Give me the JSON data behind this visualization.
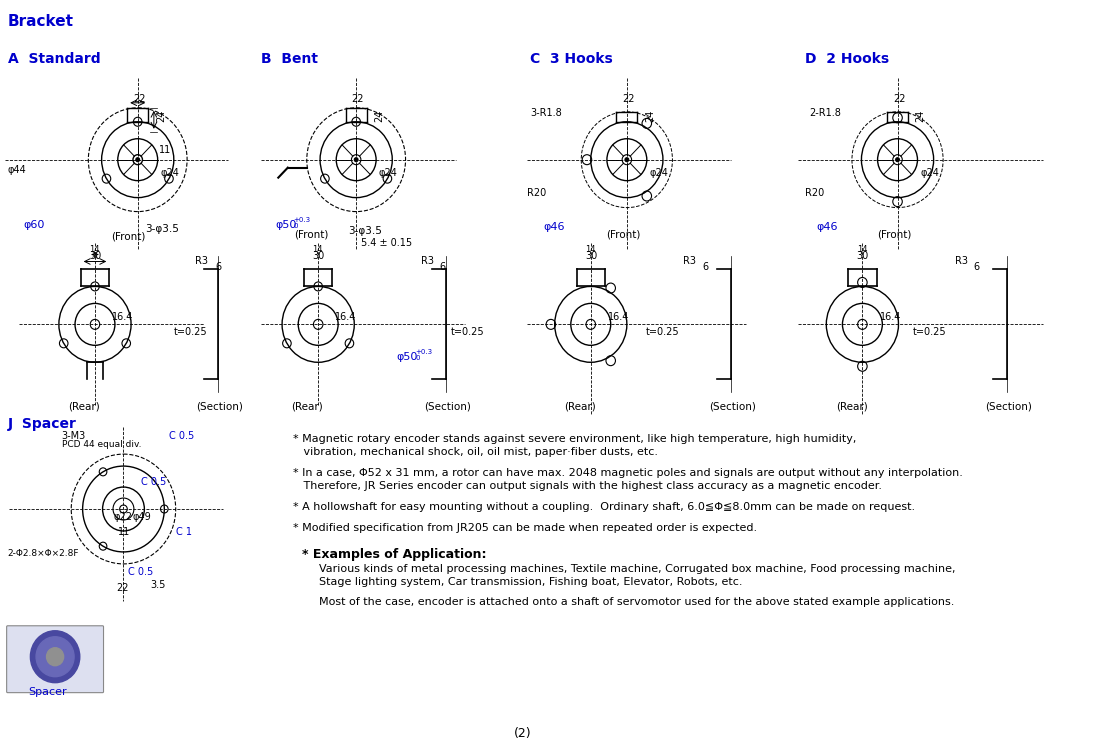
{
  "title": "Bracket",
  "bg_color": "#ffffff",
  "text_color": "#000000",
  "blue_color": "#0000cc",
  "bullet_points": [
    "* Magnetic rotary encoder stands against severe environment, like high temperature, high humidity,\n   vibration, mechanical shock, oil, oil mist, paper·fiber dusts, etc.",
    "* In a case, Φ52 x 31 mm, a rotor can have max. 2048 magnetic poles and signals are output without any interpolation.\n   Therefore, JR Series encoder can output signals with the highest class accuracy as a magnetic encoder.",
    "* A hollowshaft for easy mounting without a coupling.  Ordinary shaft, 6.0≦Φ≦8.0mm can be made on request.",
    "* Modified specification from JR205 can be made when repeated order is expected."
  ],
  "examples_header": "* Examples of Application:",
  "examples_text1": "Various kinds of metal processing machines, Textile machine, Corrugated box machine, Food processing machine,",
  "examples_text2": "Stage lighting system, Car transmission, Fishing boat, Elevator, Robots, etc.",
  "examples_text3": "Most of the case, encoder is attached onto a shaft of servomotor used for the above stated example applications.",
  "page_number": "(2)"
}
